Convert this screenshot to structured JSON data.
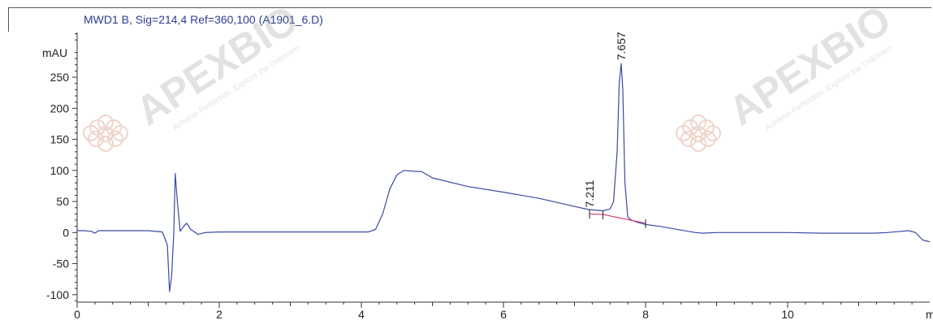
{
  "chart_data": {
    "type": "line",
    "title": "MWD1 B, Sig=214,4 Ref=360,100 (A1901_6.D)",
    "ylabel": "mAU",
    "xlabel": "m",
    "xlim": [
      0,
      12.0
    ],
    "ylim": [
      -112,
      322
    ],
    "x_ticks": [
      0,
      2,
      4,
      6,
      8,
      10
    ],
    "y_ticks": [
      -100,
      -50,
      0,
      50,
      100,
      150,
      200,
      250
    ],
    "grid": false,
    "colors": {
      "trace": "#3a4aa3",
      "baseline": "#d0307a",
      "title": "#2b3f93"
    },
    "watermark": {
      "brand": "APEXBIO",
      "tagline": "Achieve Perfection, Explore the Unknown",
      "count": 2
    },
    "peaks": [
      {
        "label": "7.211",
        "rt": 7.211,
        "height": 35
      },
      {
        "label": "7.657",
        "rt": 7.657,
        "height": 272
      }
    ],
    "series": [
      {
        "x": [
          0,
          0.1,
          0.2,
          0.25,
          0.3,
          0.5,
          0.8,
          1.0,
          1.2,
          1.27,
          1.3,
          1.33,
          1.36,
          1.38,
          1.41,
          1.45,
          1.5,
          1.54,
          1.6,
          1.7,
          1.8,
          2.0,
          2.5,
          3.0,
          3.5,
          3.9,
          4.0,
          4.1,
          4.2,
          4.3,
          4.4,
          4.5,
          4.6,
          4.7,
          4.85,
          5.0,
          5.5,
          6.0,
          6.5,
          7.0,
          7.2,
          7.4,
          7.5,
          7.55,
          7.6,
          7.63,
          7.657,
          7.68,
          7.71,
          7.75,
          7.8,
          7.9,
          8.0,
          8.2,
          8.5,
          8.7,
          8.8,
          9.0,
          9.5,
          10.0,
          10.5,
          11.0,
          11.2,
          11.4,
          11.6,
          11.7,
          11.8,
          11.9,
          12.0
        ],
        "y": [
          3,
          3,
          2,
          -1,
          3,
          3,
          3,
          3,
          1,
          -20,
          -95,
          -70,
          0,
          95,
          50,
          2,
          10,
          15,
          5,
          -3,
          0,
          1,
          1,
          1,
          1,
          1,
          1,
          1,
          5,
          30,
          70,
          93,
          100,
          99,
          98,
          88,
          74,
          65,
          55,
          42,
          37,
          35,
          38,
          50,
          130,
          240,
          272,
          230,
          80,
          25,
          20,
          16,
          13,
          10,
          4,
          0,
          -1,
          0,
          0,
          0,
          -1,
          -1,
          -1,
          0,
          2,
          3,
          0,
          -12,
          -15
        ]
      }
    ],
    "baseline_segment": {
      "x": [
        7.211,
        7.4,
        8.0
      ],
      "y": [
        30,
        29,
        15
      ]
    }
  }
}
